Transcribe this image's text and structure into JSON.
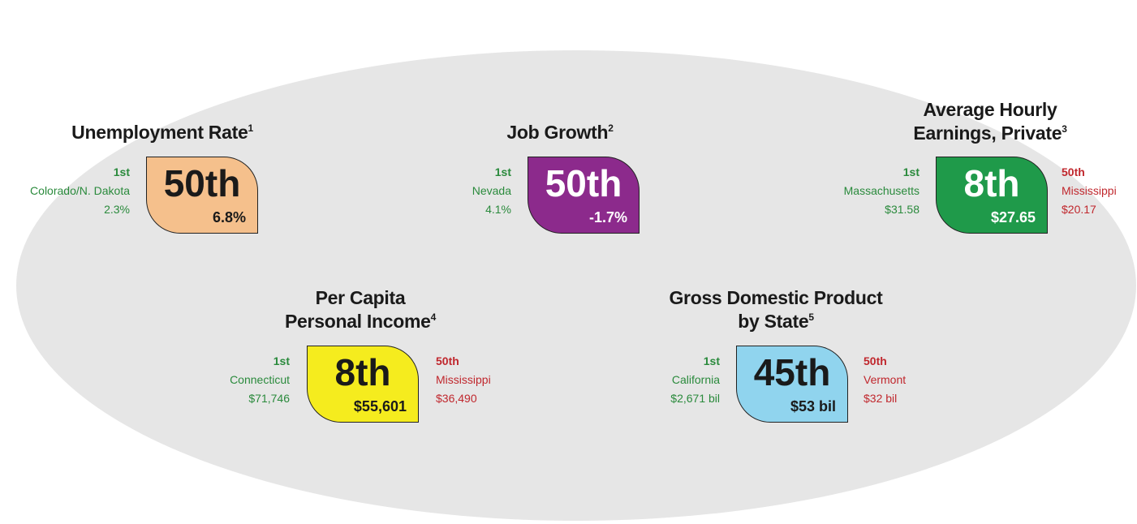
{
  "items": [
    {
      "title_lines": [
        "Unemployment Rate"
      ],
      "note": "1",
      "rank": "50th",
      "value": "6.8%",
      "color": "#f5c08c",
      "text_color": "#1a1a1a",
      "best": {
        "rank": "1st",
        "name": "Colorado/N. Dakota",
        "value": "2.3%"
      }
    },
    {
      "title_lines": [
        "Job Growth"
      ],
      "note": "2",
      "rank": "50th",
      "value": "-1.7%",
      "color": "#8c2a8c",
      "text_color": "#ffffff",
      "best": {
        "rank": "1st",
        "name": "Nevada",
        "value": "4.1%"
      }
    },
    {
      "title_lines": [
        "Average Hourly",
        "Earnings, Private"
      ],
      "note": "3",
      "rank": "8th",
      "value": "$27.65",
      "color": "#1f9a4a",
      "text_color": "#ffffff",
      "best": {
        "rank": "1st",
        "name": "Massachusetts",
        "value": "$31.58"
      },
      "worst": {
        "rank": "50th",
        "name": "Mississippi",
        "value": "$20.17"
      }
    },
    {
      "title_lines": [
        "Per Capita",
        "Personal Income"
      ],
      "note": "4",
      "rank": "8th",
      "value": "$55,601",
      "color": "#f5ec1e",
      "text_color": "#1a1a1a",
      "best": {
        "rank": "1st",
        "name": "Connecticut",
        "value": "$71,746"
      },
      "worst": {
        "rank": "50th",
        "name": "Mississippi",
        "value": "$36,490"
      }
    },
    {
      "title_lines": [
        "Gross Domestic Product",
        "by State"
      ],
      "note": "5",
      "rank": "45th",
      "value": "$53 bil",
      "color": "#90d4ee",
      "text_color": "#1a1a1a",
      "best": {
        "rank": "1st",
        "name": "California",
        "value": "$2,671 bil"
      },
      "worst": {
        "rank": "50th",
        "name": "Vermont",
        "value": "$32 bil"
      }
    }
  ]
}
